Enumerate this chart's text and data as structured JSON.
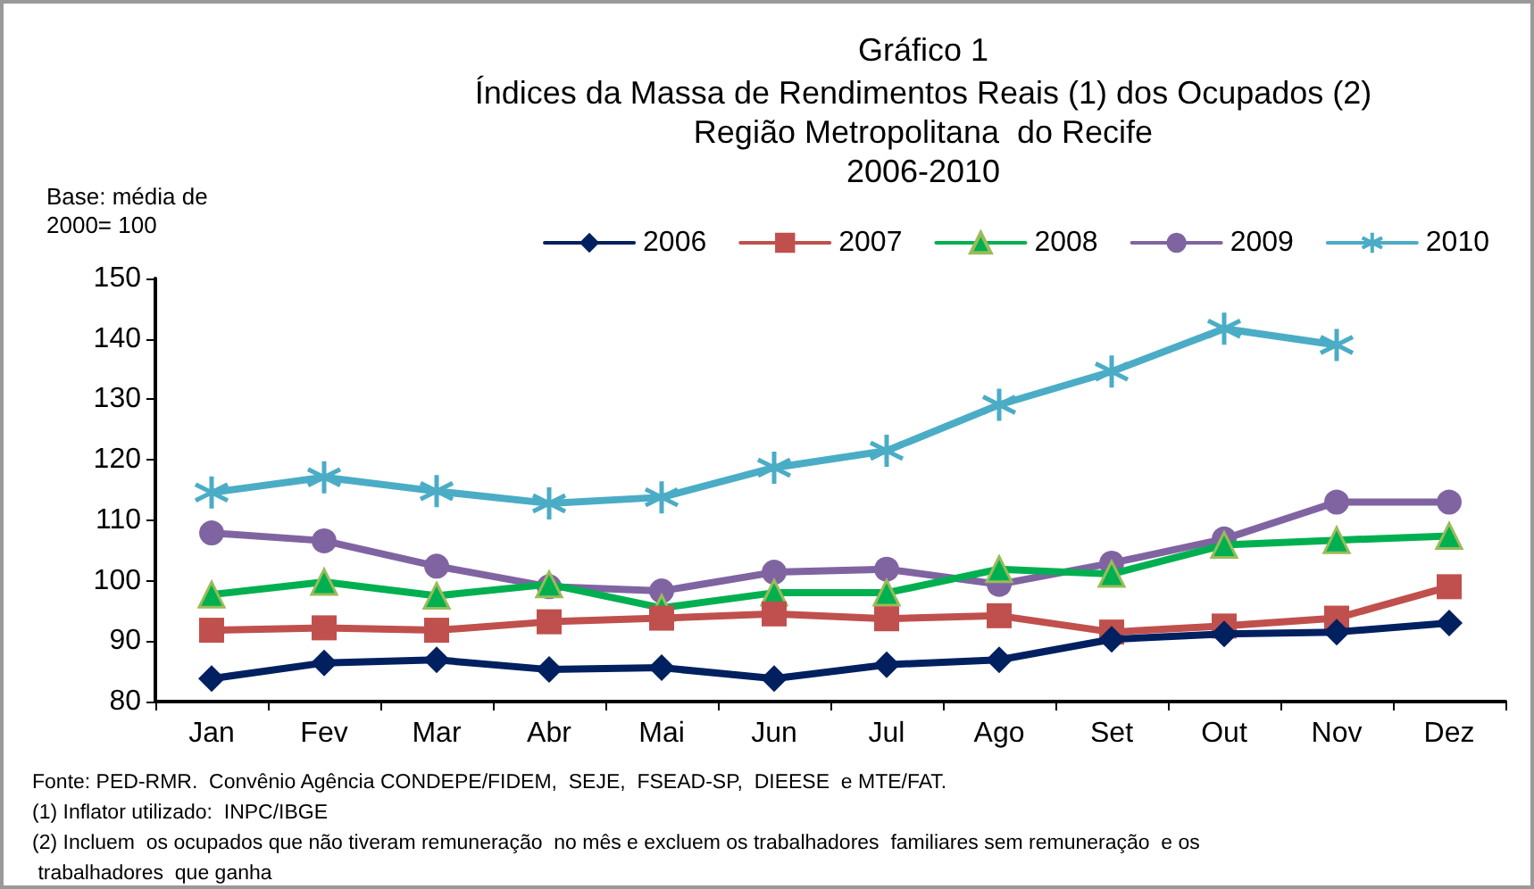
{
  "chart_data": {
    "type": "line",
    "title": "Gráfico 1",
    "subtitle": "Índices da Massa de Rendimentos Reais (1) dos Ocupados (2)\nRegião Metropolitana  do Recife\n2006-2010",
    "categories": [
      "Jan",
      "Fev",
      "Mar",
      "Abr",
      "Mai",
      "Jun",
      "Jul",
      "Ago",
      "Set",
      "Out",
      "Nov",
      "Dez"
    ],
    "series": [
      {
        "name": "2006",
        "color": "#002060",
        "marker": "diamond",
        "values": [
          83.8,
          86.4,
          86.9,
          85.3,
          85.6,
          83.8,
          86.1,
          86.9,
          90.3,
          91.2,
          91.5,
          93.0
        ]
      },
      {
        "name": "2007",
        "color": "#c0504d",
        "marker": "square",
        "values": [
          91.8,
          92.2,
          91.8,
          93.2,
          93.8,
          94.5,
          93.7,
          94.2,
          91.5,
          92.5,
          93.8,
          99.0
        ]
      },
      {
        "name": "2008",
        "color": "#00b050",
        "marker": "triangle",
        "values": [
          97.7,
          99.8,
          97.5,
          99.4,
          95.5,
          98.0,
          98.0,
          101.9,
          101.1,
          105.9,
          106.7,
          107.4
        ]
      },
      {
        "name": "2009",
        "color": "#8064a2",
        "marker": "circle",
        "values": [
          107.9,
          106.6,
          102.4,
          99.0,
          98.3,
          101.4,
          101.9,
          99.4,
          102.9,
          106.9,
          113.0,
          113.0
        ]
      },
      {
        "name": "2010",
        "color": "#4bacc6",
        "marker": "cross",
        "values": [
          114.6,
          117.1,
          114.8,
          112.8,
          113.8,
          118.7,
          121.5,
          129.1,
          134.6,
          141.7,
          139.0,
          null
        ]
      }
    ],
    "ylim": [
      80,
      150
    ],
    "yticks": [
      80,
      90,
      100,
      110,
      120,
      130,
      140,
      150
    ],
    "grid": false,
    "legend": "top right",
    "line_style": "solid",
    "annotations": [
      "Base: média de\n2000= 100",
      "Fonte: PED-RMR.  Convênio Agência CONDEPE/FIDEM,  SEJE,  FSEAD-SP,  DIEESE  e MTE/FAT.",
      "(1) Inflator utilizado:  INPC/IBGE",
      "(2) Incluem  os ocupados que não tiveram remuneração  no mês e excluem os trabalhadores  familiares sem remuneração  e os trabalhadores  que ganha"
    ]
  }
}
